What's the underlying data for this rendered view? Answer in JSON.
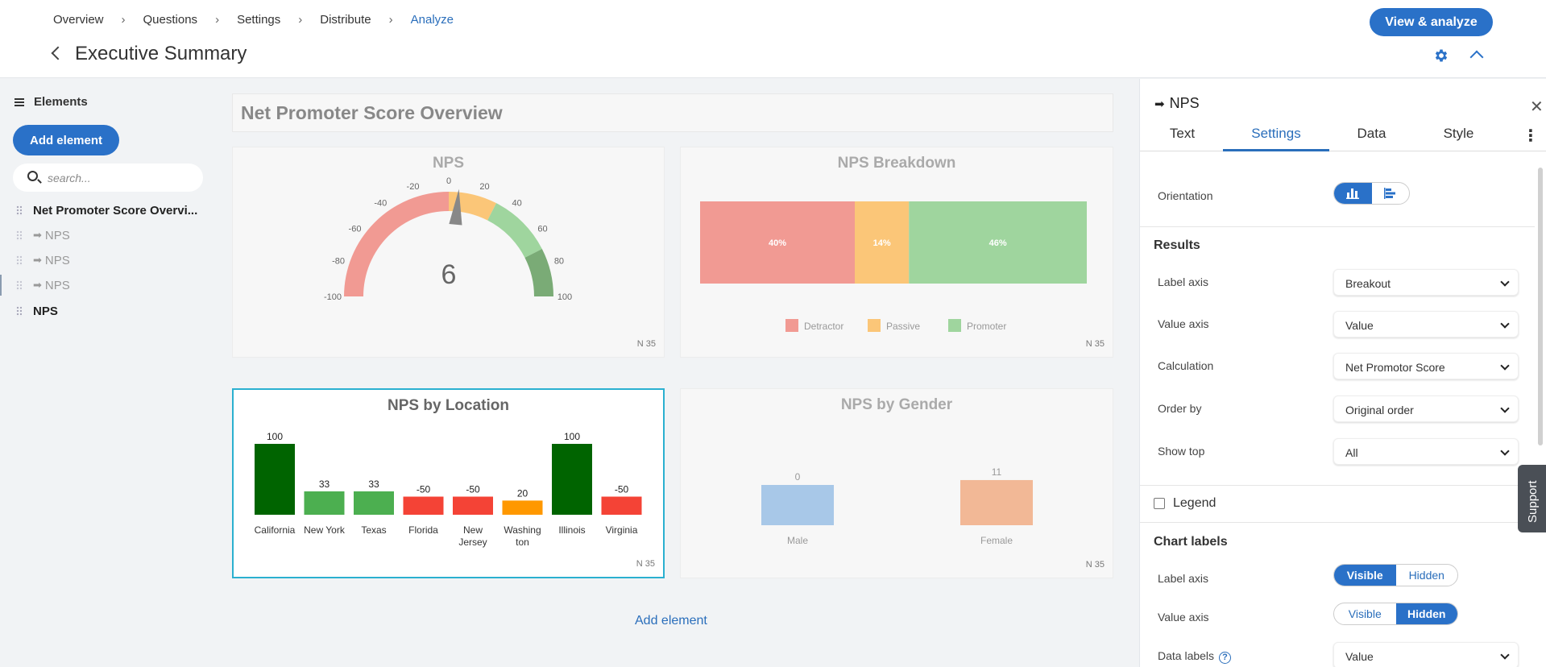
{
  "header": {
    "breadcrumbs": [
      "Overview",
      "Questions",
      "Settings",
      "Distribute",
      "Analyze"
    ],
    "title": "Executive Summary",
    "view_button": "View & analyze"
  },
  "sidebar": {
    "heading": "Elements",
    "add_button": "Add element",
    "search_placeholder": "search...",
    "items": [
      {
        "label": "Net Promoter Score Overvi..."
      },
      {
        "label": "NPS"
      },
      {
        "label": "NPS"
      },
      {
        "label": "NPS"
      },
      {
        "label": "NPS"
      }
    ]
  },
  "canvas": {
    "section_title": "Net Promoter Score Overview",
    "add_element": "Add element"
  },
  "charts": {
    "nps_gauge": {
      "title": "NPS",
      "n": "N 35",
      "chart_data": {
        "type": "gauge",
        "value": 6,
        "min": -100,
        "max": 100,
        "ticks": [
          -100,
          -80,
          -60,
          -40,
          -20,
          0,
          20,
          40,
          60,
          80,
          100
        ],
        "colors": {
          "detractor": "#f19a93",
          "passive": "#fbc678",
          "promoter": "#9fd59e",
          "top": "#7aab76",
          "needle": "#888888"
        }
      }
    },
    "nps_breakdown": {
      "title": "NPS Breakdown",
      "n": "N 35",
      "chart_data": {
        "type": "bar",
        "orientation": "stacked-horizontal",
        "series": [
          {
            "name": "Detractor",
            "value": 40,
            "label": "40%",
            "color": "#f19a93"
          },
          {
            "name": "Passive",
            "value": 14,
            "label": "14%",
            "color": "#fbc678"
          },
          {
            "name": "Promoter",
            "value": 46,
            "label": "46%",
            "color": "#9fd59e"
          }
        ],
        "legend": "bottom"
      }
    },
    "nps_location": {
      "title": "NPS by Location",
      "n": "N 35",
      "chart_data": {
        "type": "bar",
        "categories": [
          "California",
          "New York",
          "Texas",
          "Florida",
          "New Jersey",
          "Washington",
          "Illinois",
          "Virginia"
        ],
        "category_lines": [
          [
            "California"
          ],
          [
            "New York"
          ],
          [
            "Texas"
          ],
          [
            "Florida"
          ],
          [
            "New",
            "Jersey"
          ],
          [
            "Washing",
            "ton"
          ],
          [
            "Illinois"
          ],
          [
            "Virginia"
          ]
        ],
        "values": [
          100,
          33,
          33,
          -50,
          -50,
          20,
          100,
          -50
        ],
        "colors": [
          "#006400",
          "#4caf50",
          "#4caf50",
          "#f44336",
          "#f44336",
          "#ff9800",
          "#006400",
          "#f44336"
        ],
        "ylim": [
          -100,
          100
        ]
      }
    },
    "nps_gender": {
      "title": "NPS by Gender",
      "n": "N 35",
      "chart_data": {
        "type": "bar",
        "categories": [
          "Male",
          "Female"
        ],
        "values": [
          0,
          11
        ],
        "colors": [
          "#a8c8e8",
          "#f2b896"
        ]
      }
    }
  },
  "panel": {
    "title": "NPS",
    "tabs": [
      "Text",
      "Settings",
      "Data",
      "Style"
    ],
    "active_tab": "Settings",
    "orientation_label": "Orientation",
    "results_heading": "Results",
    "results": [
      {
        "label": "Label axis",
        "value": "Breakout"
      },
      {
        "label": "Value axis",
        "value": "Value"
      },
      {
        "label": "Calculation",
        "value": "Net Promotor Score"
      },
      {
        "label": "Order by",
        "value": "Original order"
      },
      {
        "label": "Show top",
        "value": "All"
      }
    ],
    "legend_label": "Legend",
    "chart_labels_heading": "Chart labels",
    "label_axis": {
      "label": "Label axis",
      "options": [
        "Visible",
        "Hidden"
      ],
      "selected": "Visible"
    },
    "value_axis": {
      "label": "Value axis",
      "options": [
        "Visible",
        "Hidden"
      ],
      "selected": "Hidden"
    },
    "data_labels": {
      "label": "Data labels",
      "value": "Value"
    },
    "support": "Support"
  },
  "theme": {
    "accent": "#2a71c8",
    "selection": "#2bb0d0"
  }
}
